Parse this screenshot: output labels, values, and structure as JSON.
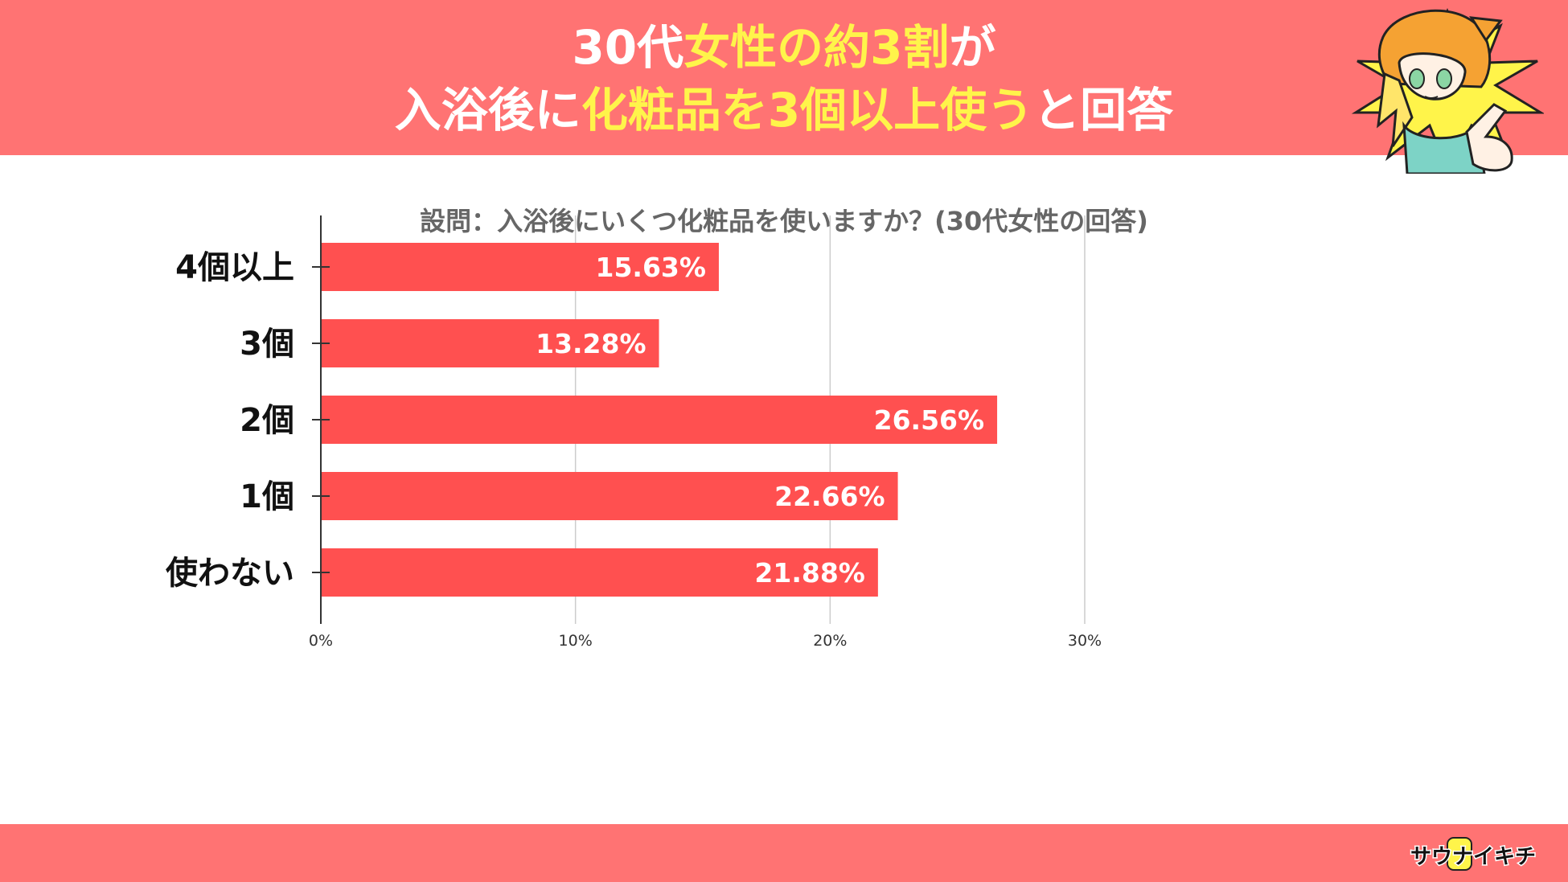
{
  "header": {
    "line1": [
      {
        "text": "30代",
        "highlight": false
      },
      {
        "text": "女性の約3割",
        "highlight": true
      },
      {
        "text": "が",
        "highlight": false
      }
    ],
    "line2": [
      {
        "text": "入浴後に",
        "highlight": false
      },
      {
        "text": "化粧品を3個以上使う",
        "highlight": true
      },
      {
        "text": "と回答",
        "highlight": false
      }
    ]
  },
  "subtitle": "設問：入浴後にいくつ化粧品を使いますか？(30代女性の回答)",
  "colors": {
    "band": "#ff7373",
    "bar": "#ff5050",
    "highlight_text": "#fff44a",
    "grid": "#cccccc"
  },
  "chart_data": {
    "type": "bar",
    "orientation": "horizontal",
    "categories": [
      "4個以上",
      "3個",
      "2個",
      "1個",
      "使わない"
    ],
    "values": [
      15.63,
      13.28,
      26.56,
      22.66,
      21.88
    ],
    "value_labels": [
      "15.63%",
      "13.28%",
      "26.56%",
      "22.66%",
      "21.88%"
    ],
    "xlim": [
      0,
      30
    ],
    "x_ticks": [
      0,
      10,
      20,
      30
    ],
    "x_tick_labels": [
      "0%",
      "10%",
      "20%",
      "30%"
    ],
    "grid": true
  },
  "brand": {
    "logo_text": "サウナイキチ"
  }
}
